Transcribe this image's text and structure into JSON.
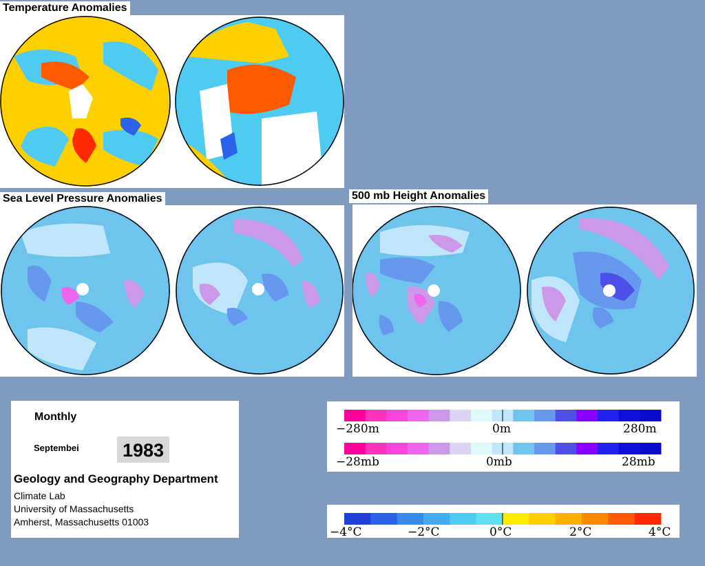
{
  "titles": {
    "temperature": "Temperature Anomalies",
    "slp": "Sea Level Pressure Anomalies",
    "h500": "500 mb Height Anomalies"
  },
  "info": {
    "frequency": "Monthly",
    "month": "Septembei",
    "year": "1983",
    "department": "Geology and Geography Department",
    "lines": [
      "Climate Lab",
      "University of Massachusetts",
      "Amherst, Massachusetts 01003"
    ]
  },
  "legends": {
    "height": {
      "labels": [
        "−280m",
        "0m",
        "280m"
      ]
    },
    "pressure": {
      "labels": [
        "−28mb",
        "0mb",
        "28mb"
      ]
    },
    "temperature": {
      "labels": [
        "−4°C",
        "−2°C",
        "0°C",
        "2°C",
        "4°C"
      ]
    }
  },
  "colors": {
    "background": "#7f9bbf",
    "temp_scale": [
      "#1f3fd8",
      "#2a62e8",
      "#3a8ae8",
      "#45aaf0",
      "#4fcaf0",
      "#5fe0f0",
      "#ffee00",
      "#ffd000",
      "#ffb000",
      "#ff8800",
      "#ff5a00",
      "#ff2a00"
    ],
    "anomaly_scale": [
      "#ff0099",
      "#ff33bb",
      "#ff44dd",
      "#ee66ee",
      "#cc99e8",
      "#ddd4f4",
      "#dff8fa",
      "#bfe6fa",
      "#6fc4ee",
      "#6699ee",
      "#4e4ee8",
      "#8800ff",
      "#2222ee",
      "#1010dd",
      "#0a0acc"
    ]
  }
}
